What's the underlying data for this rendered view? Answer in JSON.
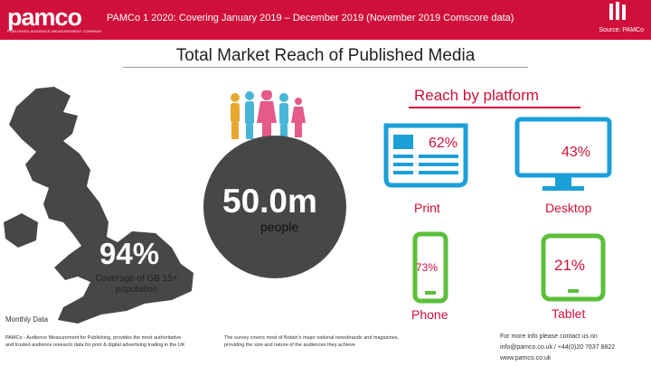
{
  "header": {
    "logo": "pamco",
    "logo_tagline": "PUBLISHED AUDIENCE MEASUREMENT COMPANY",
    "title": "PAMCo 1 2020: Covering January 2019 – December 2019 (November 2019 Comscore data)",
    "source": "Source: PAMCo"
  },
  "main_title": "Total Market Reach of Published Media",
  "reach_by_platform": {
    "title": "Reach by platform",
    "print": {
      "label": "Print",
      "value": "62%"
    },
    "desktop": {
      "label": "Desktop",
      "value": "43%"
    },
    "phone": {
      "label": "Phone",
      "value": "73%"
    },
    "tablet": {
      "label": "Tablet",
      "value": "21%"
    }
  },
  "total": {
    "value": "50.0m",
    "unit": "people"
  },
  "coverage": {
    "value": "94%",
    "label": "Coverage of GB 15+ population"
  },
  "monthly_data": "Monthly Data",
  "footer": {
    "pamco_note": "PAMCo - Audience Measurement for Publishing, provides the most authoritative and trusted audience research data for print & digital advertising trading in the UK",
    "survey_note": "The survey covers most of Britain's major national newsbrands and magazines, providing the size and nature of the audiences they achieve",
    "contact_intro": "For more info please contact us on",
    "contact_email": "info@pamco.co.uk / +44(0)20 7637 8822",
    "website": "www.pamco.co.uk"
  },
  "colors": {
    "accent": "#d0103a",
    "circle": "#474747",
    "map": "#474747"
  },
  "icons": [
    "bars-logo-icon",
    "uk-map-icon",
    "people-icon",
    "newspaper-icon",
    "monitor-icon",
    "phone-icon",
    "tablet-icon"
  ]
}
